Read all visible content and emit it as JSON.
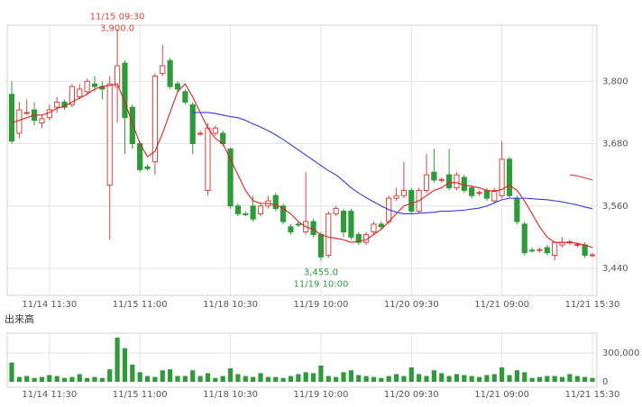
{
  "chart_data": [
    {
      "type": "candlestick",
      "categories": [
        null,
        null,
        null,
        null,
        null,
        "11/14 11:30",
        null,
        null,
        null,
        null,
        null,
        null,
        null,
        null,
        null,
        null,
        null,
        "11/15 11:00",
        null,
        null,
        null,
        null,
        null,
        null,
        null,
        null,
        null,
        null,
        null,
        "11/18 10:30",
        null,
        null,
        null,
        null,
        null,
        null,
        null,
        null,
        null,
        null,
        null,
        "11/19 10:00",
        null,
        null,
        null,
        null,
        null,
        null,
        null,
        null,
        null,
        null,
        null,
        "11/20 09:30",
        null,
        null,
        null,
        null,
        null,
        null,
        null,
        null,
        null,
        null,
        null,
        "11/21 09:00",
        null,
        null,
        null,
        null,
        null,
        null,
        null,
        null,
        null,
        null,
        null,
        "11/21 15:30"
      ],
      "open": [
        3775,
        3700,
        3740,
        3745,
        3720,
        3730,
        3750,
        3760,
        3755,
        3770,
        3780,
        3795,
        3790,
        3600,
        3790,
        3835,
        3750,
        3680,
        3635,
        3645,
        3815,
        3840,
        3795,
        3780,
        3755,
        3700,
        3590,
        3700,
        3700,
        3670,
        3560,
        3545,
        3560,
        3545,
        3560,
        3580,
        3560,
        3520,
        3525,
        3510,
        3530,
        3505,
        3465,
        3545,
        3550,
        3550,
        3505,
        3490,
        3510,
        3525,
        3530,
        3575,
        3580,
        3590,
        3550,
        3590,
        3625,
        3610,
        3620,
        3595,
        3615,
        3595,
        3585,
        3590,
        3570,
        3580,
        3650,
        3575,
        3525,
        3475,
        3475,
        3480,
        3465,
        3485,
        3490,
        3485,
        3485,
        3465
      ],
      "high": [
        3800,
        3760,
        3765,
        3760,
        3735,
        3755,
        3770,
        3765,
        3795,
        3795,
        3805,
        3810,
        3800,
        3810,
        3900,
        3840,
        3755,
        3685,
        3640,
        3815,
        3870,
        3845,
        3800,
        3785,
        3760,
        3705,
        3720,
        3715,
        3705,
        3672,
        3565,
        3550,
        3580,
        3565,
        3580,
        3585,
        3565,
        3525,
        3530,
        3625,
        3535,
        3510,
        3550,
        3560,
        3555,
        3555,
        3510,
        3510,
        3530,
        3530,
        3580,
        3595,
        3645,
        3595,
        3595,
        3660,
        3670,
        3615,
        3670,
        3625,
        3620,
        3600,
        3590,
        3595,
        3595,
        3685,
        3655,
        3580,
        3530,
        3480,
        3480,
        3485,
        3492,
        3500,
        3495,
        3490,
        3490,
        3470
      ],
      "low": [
        3680,
        3690,
        3735,
        3715,
        3710,
        3725,
        3740,
        3745,
        3750,
        3765,
        3775,
        3780,
        3765,
        3495,
        3720,
        3660,
        3670,
        3625,
        3628,
        3620,
        3810,
        3785,
        3780,
        3755,
        3660,
        3695,
        3580,
        3695,
        3675,
        3555,
        3540,
        3540,
        3530,
        3540,
        3555,
        3550,
        3525,
        3505,
        3520,
        3505,
        3500,
        3455,
        3460,
        3540,
        3500,
        3495,
        3485,
        3485,
        3505,
        3515,
        3525,
        3570,
        3575,
        3545,
        3545,
        3585,
        3605,
        3605,
        3590,
        3590,
        3585,
        3575,
        3580,
        3570,
        3565,
        3575,
        3575,
        3525,
        3465,
        3470,
        3470,
        3465,
        3455,
        3480,
        3485,
        3480,
        3460,
        3462
      ],
      "close": [
        3685,
        3745,
        3740,
        3725,
        3728,
        3745,
        3760,
        3750,
        3790,
        3785,
        3800,
        3790,
        3785,
        3795,
        3830,
        3730,
        3680,
        3630,
        3632,
        3810,
        3830,
        3790,
        3785,
        3760,
        3680,
        3700,
        3710,
        3710,
        3680,
        3560,
        3545,
        3544,
        3535,
        3560,
        3570,
        3555,
        3530,
        3510,
        3524,
        3530,
        3505,
        3462,
        3545,
        3555,
        3510,
        3500,
        3490,
        3505,
        3525,
        3520,
        3575,
        3580,
        3590,
        3550,
        3590,
        3620,
        3610,
        3611,
        3595,
        3620,
        3590,
        3580,
        3586,
        3575,
        3590,
        3650,
        3580,
        3530,
        3470,
        3474,
        3476,
        3470,
        3490,
        3490,
        3491,
        3486,
        3465,
        3466
      ],
      "up_color": "#d9453c",
      "down_color": "#2f9a3a",
      "series": [
        {
          "color": "#e02020",
          "values": [
            3720,
            3725,
            3730,
            3735,
            3735,
            3740,
            3748,
            3752,
            3760,
            3768,
            3775,
            3785,
            3790,
            3792,
            3795,
            3760,
            3720,
            3680,
            3655,
            3665,
            3700,
            3740,
            3780,
            3795,
            3770,
            3740,
            3710,
            3690,
            3680,
            3650,
            3620,
            3590,
            3570,
            3565,
            3565,
            3562,
            3555,
            3545,
            3530,
            3520,
            3515,
            3505,
            3500,
            3498,
            3495,
            3490,
            3492,
            3495,
            3505,
            3515,
            3530,
            3545,
            3560,
            3565,
            3570,
            3580,
            3590,
            3595,
            3605,
            3605,
            3600,
            3598,
            3595,
            3590,
            3588,
            3592,
            3600,
            3590,
            3570,
            3545,
            3520,
            3500,
            3490,
            3490,
            3490,
            3488,
            3485,
            3480
          ]
        },
        {
          "color": "#3a3ad6",
          "values": [
            null,
            null,
            null,
            null,
            null,
            null,
            null,
            null,
            null,
            null,
            null,
            null,
            null,
            null,
            null,
            null,
            null,
            null,
            null,
            null,
            null,
            null,
            null,
            null,
            3740,
            3740,
            3740,
            3738,
            3735,
            3732,
            3730,
            3725,
            3718,
            3712,
            3705,
            3697,
            3688,
            3678,
            3668,
            3658,
            3648,
            3638,
            3628,
            3620,
            3608,
            3595,
            3585,
            3576,
            3568,
            3560,
            3553,
            3548,
            3545,
            3545,
            3546,
            3547,
            3548,
            3550,
            3550,
            3551,
            3552,
            3554,
            3556,
            3560,
            3566,
            3572,
            3575,
            3575,
            3575,
            3574,
            3573,
            3572,
            3570,
            3568,
            3565,
            3562,
            3558,
            3555
          ]
        },
        {
          "color": "#e04040",
          "values": [
            null,
            null,
            null,
            null,
            null,
            null,
            null,
            null,
            null,
            null,
            null,
            null,
            null,
            null,
            null,
            null,
            null,
            null,
            null,
            null,
            null,
            null,
            null,
            null,
            null,
            null,
            null,
            null,
            null,
            null,
            null,
            null,
            null,
            null,
            null,
            null,
            null,
            null,
            null,
            null,
            null,
            null,
            null,
            null,
            null,
            null,
            null,
            null,
            null,
            null,
            null,
            null,
            null,
            null,
            null,
            null,
            null,
            null,
            null,
            null,
            null,
            null,
            null,
            null,
            null,
            null,
            null,
            null,
            null,
            null,
            null,
            null,
            null,
            null,
            3620,
            3618,
            3614,
            3610
          ]
        }
      ],
      "annotations": [
        {
          "time": "11/15 09:30",
          "label": "3,900.0",
          "value": 3900,
          "color": "#d9453c"
        },
        {
          "time": "11/19 10:00",
          "label": "3,455.0",
          "value": 3455,
          "color": "#2f9a3a"
        }
      ],
      "ylim": [
        3388,
        3908
      ],
      "yticks": [
        {
          "value": 3440,
          "label": "3,440"
        },
        {
          "value": 3560,
          "label": "3,560"
        },
        {
          "value": 3680,
          "label": "3,680"
        },
        {
          "value": 3800,
          "label": "3,800"
        }
      ],
      "grid": true
    },
    {
      "type": "bar",
      "title": "出来高",
      "categories": [
        null,
        null,
        null,
        null,
        null,
        "11/14 11:30",
        null,
        null,
        null,
        null,
        null,
        null,
        null,
        null,
        null,
        null,
        null,
        "11/15 11:00",
        null,
        null,
        null,
        null,
        null,
        null,
        null,
        null,
        null,
        null,
        null,
        "11/18 10:30",
        null,
        null,
        null,
        null,
        null,
        null,
        null,
        null,
        null,
        null,
        null,
        "11/19 10:00",
        null,
        null,
        null,
        null,
        null,
        null,
        null,
        null,
        null,
        null,
        null,
        "11/20 09:30",
        null,
        null,
        null,
        null,
        null,
        null,
        null,
        null,
        null,
        null,
        null,
        "11/21 09:00",
        null,
        null,
        null,
        null,
        null,
        null,
        null,
        null,
        null,
        null,
        null,
        "11/21 15:30"
      ],
      "values": [
        200000,
        50000,
        60000,
        40000,
        50000,
        70000,
        60000,
        40000,
        50000,
        80000,
        40000,
        50000,
        40000,
        130000,
        460000,
        350000,
        180000,
        100000,
        60000,
        50000,
        120000,
        130000,
        60000,
        60000,
        120000,
        60000,
        90000,
        40000,
        60000,
        140000,
        80000,
        60000,
        50000,
        90000,
        50000,
        50000,
        40000,
        60000,
        80000,
        100000,
        90000,
        170000,
        60000,
        50000,
        100000,
        120000,
        70000,
        60000,
        50000,
        40000,
        60000,
        80000,
        60000,
        150000,
        80000,
        60000,
        120000,
        90000,
        60000,
        80000,
        70000,
        60000,
        50000,
        70000,
        80000,
        150000,
        70000,
        120000,
        100000,
        40000,
        50000,
        60000,
        60000,
        50000,
        80000,
        60000,
        50000,
        40000
      ],
      "color": "#2f9a3a",
      "ylim": [
        -56250,
        506250
      ],
      "yticks": [
        0,
        {
          "value": 300000,
          "label": "300,000"
        }
      ],
      "grid": true
    }
  ]
}
